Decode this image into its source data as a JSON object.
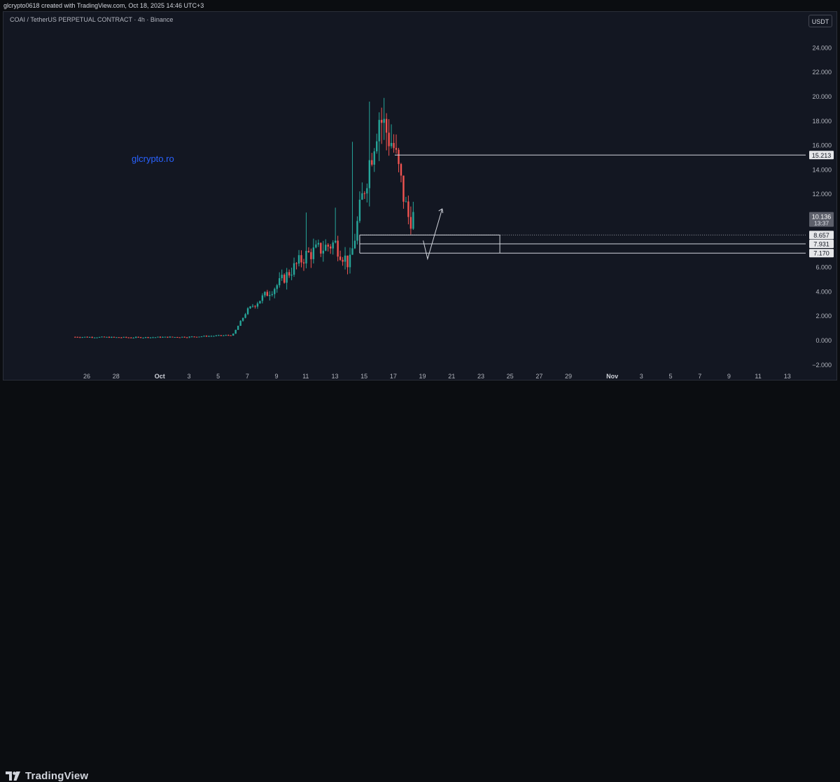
{
  "header": {
    "credit": "glcrypto0618 created with TradingView.com, Oct 18, 2025 14:46 UTC+3",
    "symbol": "COAI / TetherUS PERPETUAL CONTRACT · 4h · Binance",
    "currency_button": "USDT",
    "watermark": "glcrypto.ro"
  },
  "footer": {
    "brand": "TradingView"
  },
  "colors": {
    "up": "#26a69a",
    "down": "#ef5350",
    "text": "#b2b5be",
    "level_line": "#d1d4dc",
    "watermark": "#2962ff"
  },
  "icons": {
    "brand": "tradingview-logo-icon"
  },
  "chart_data": {
    "type": "candlestick",
    "y_ticks": [
      "24.000",
      "22.000",
      "20.000",
      "18.000",
      "16.000",
      "14.000",
      "12.000",
      "10.000",
      "8.000",
      "6.000",
      "4.000",
      "2.000",
      "0.000",
      "−2.000"
    ],
    "y_range": [
      -2.0,
      24.0
    ],
    "x_ticks": [
      "26",
      "28",
      "Oct",
      "3",
      "5",
      "7",
      "9",
      "11",
      "13",
      "15",
      "17",
      "19",
      "21",
      "23",
      "25",
      "27",
      "29",
      "Nov",
      "3",
      "5",
      "7",
      "9",
      "11",
      "13"
    ],
    "price_labels": [
      {
        "value": 15.213,
        "text": "15.213"
      },
      {
        "value": 8.657,
        "text": "8.657"
      },
      {
        "value": 7.931,
        "text": "7.931"
      },
      {
        "value": 7.17,
        "text": "7.170"
      }
    ],
    "last_price": {
      "value": 10.136,
      "text": "10.136",
      "countdown": "13:37"
    },
    "support_zone": {
      "from_date": "Oct 14",
      "to_date": "Oct 25",
      "levels": [
        8.657,
        7.931,
        7.17
      ]
    },
    "resistance_line": {
      "from_date": "Oct 17",
      "value": 15.213
    },
    "projection_arrow": {
      "from": {
        "date": "Oct 19",
        "value": 8.2
      },
      "via": {
        "date": "Oct 19",
        "value": 6.7
      },
      "to": {
        "date": "Oct 20",
        "value": 10.8
      }
    },
    "grid": false,
    "ohlc_anchor_dates": [
      "Sep 25",
      "Sep 29",
      "Oct 3",
      "Oct 6",
      "Oct 7",
      "Oct 9",
      "Oct 11",
      "Oct 13",
      "Oct 14",
      "Oct 15",
      "Oct 16",
      "Oct 17",
      "Oct 18"
    ],
    "ohlc_anchor_closes": [
      0.3,
      0.25,
      0.3,
      0.45,
      2.5,
      4.5,
      7.0,
      8.0,
      6.2,
      12.5,
      18.5,
      16.0,
      10.14
    ]
  }
}
